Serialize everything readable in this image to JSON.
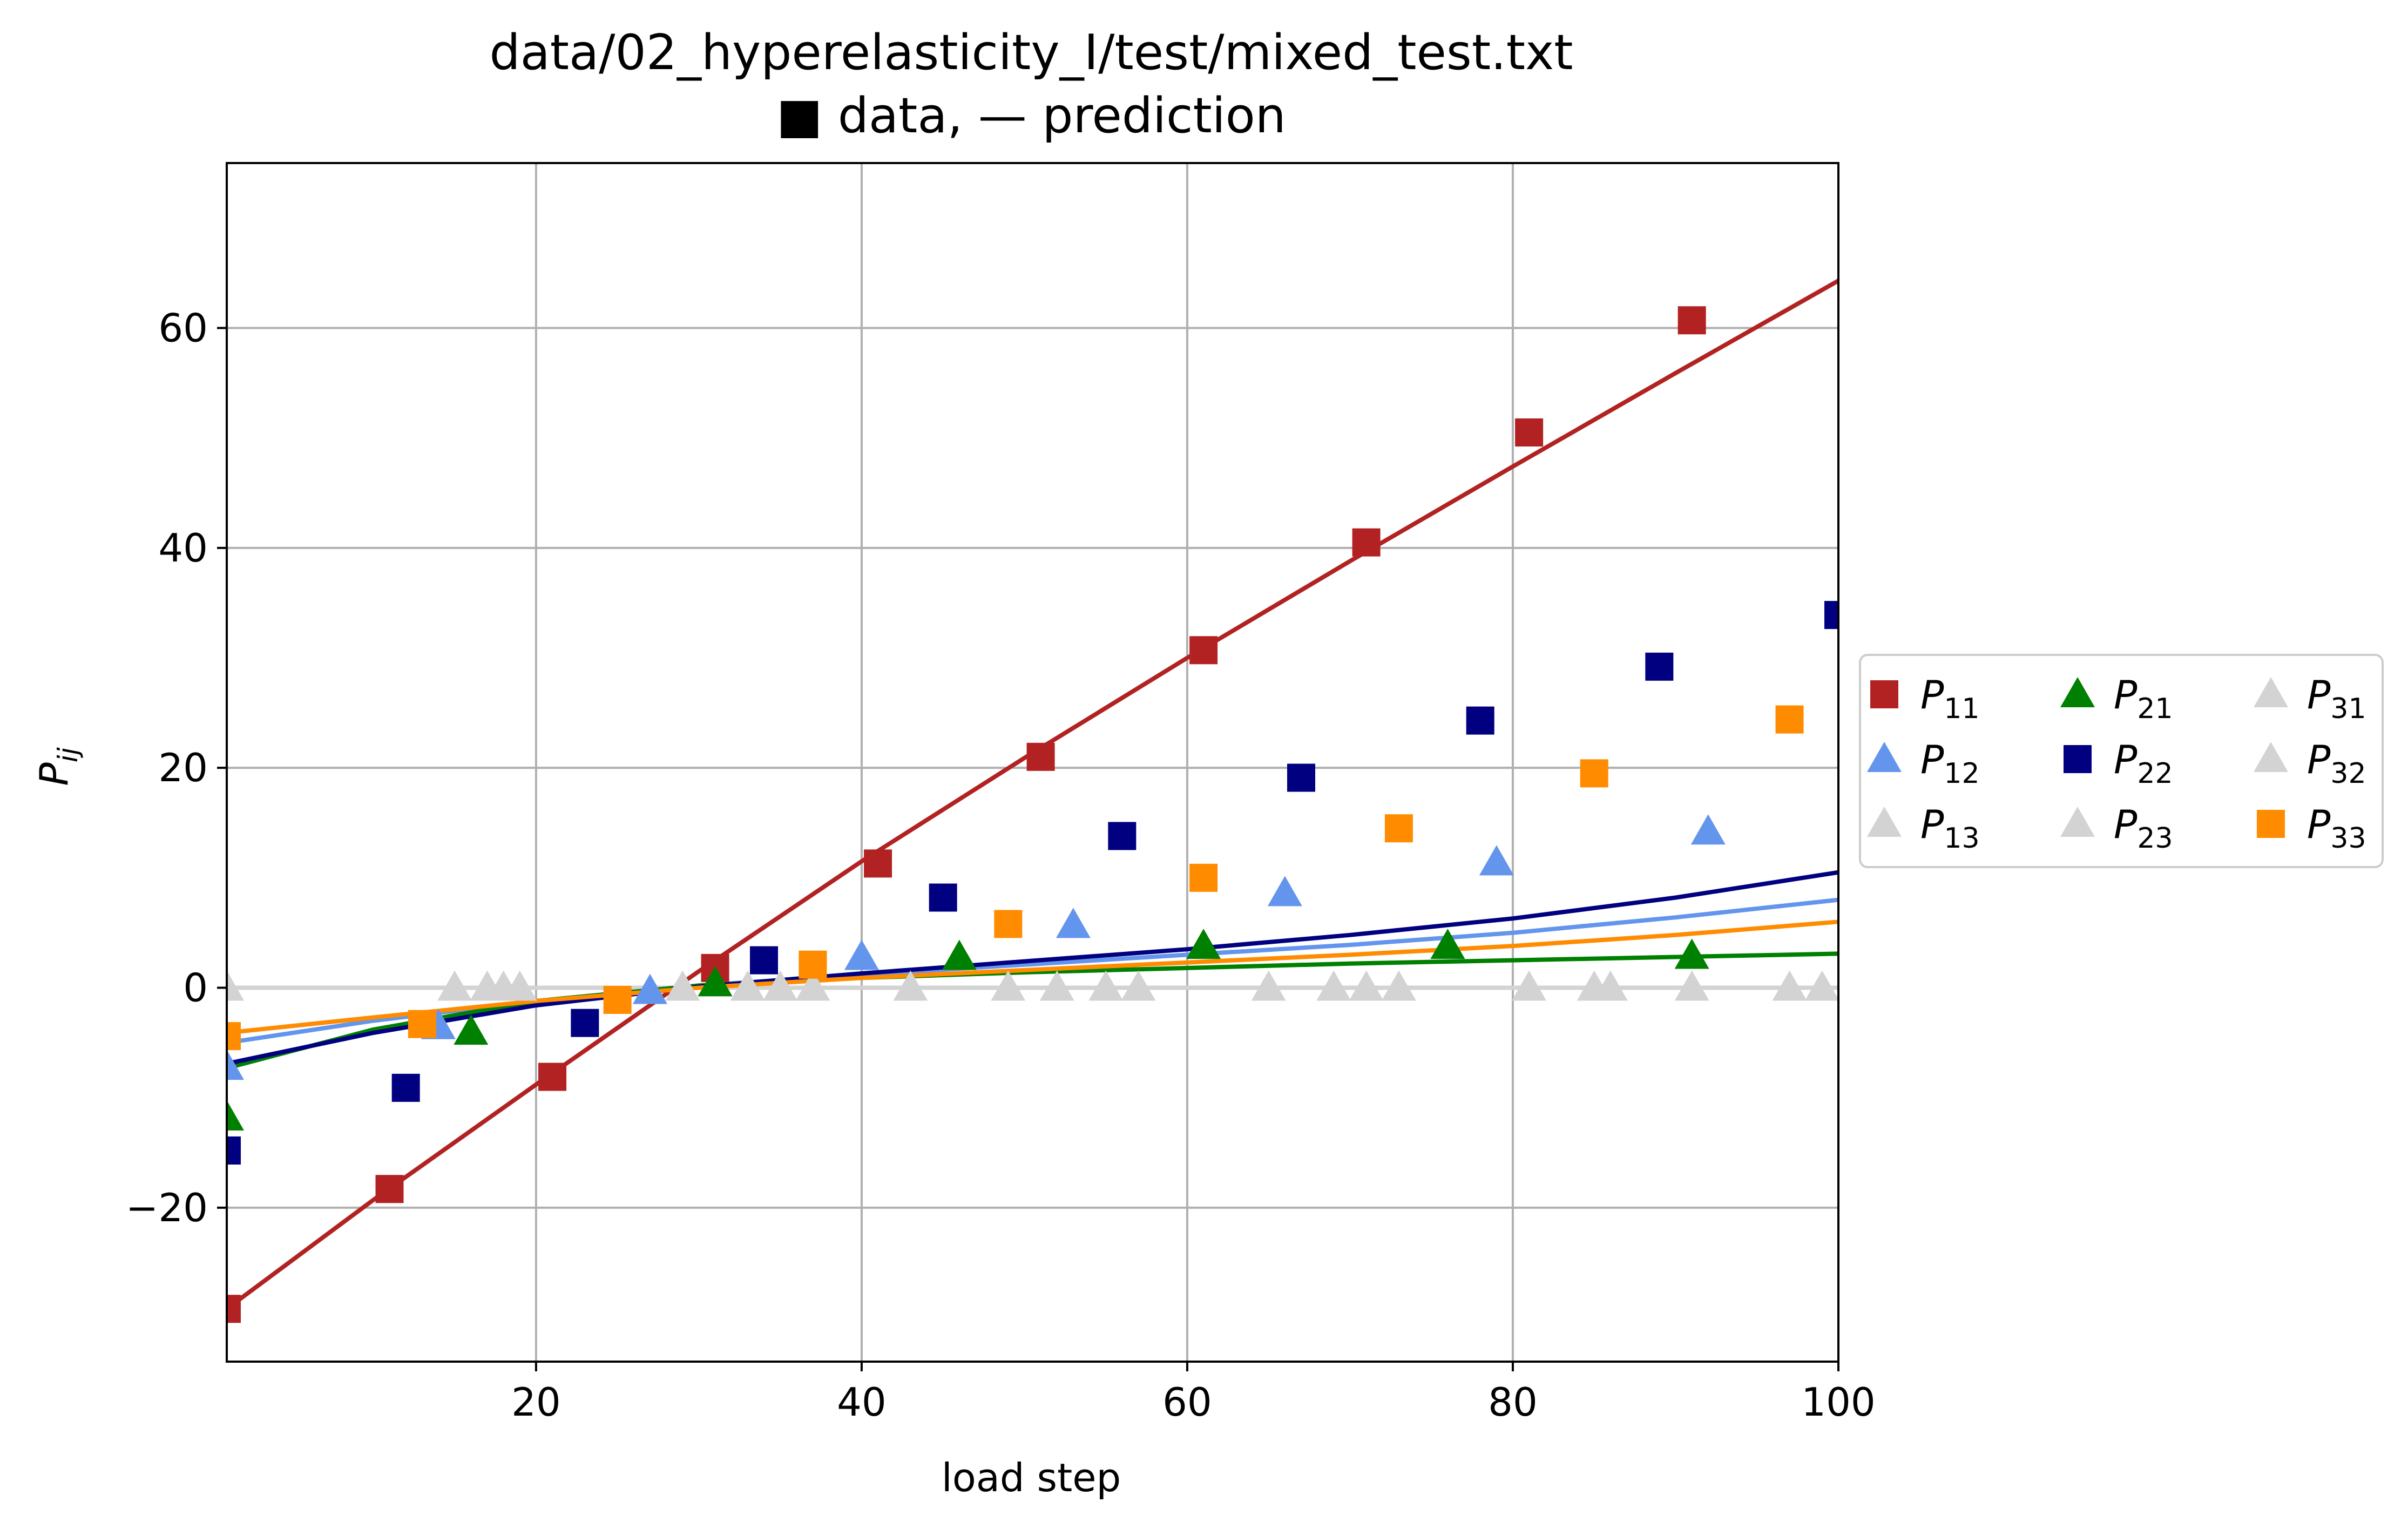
{
  "chart_data": {
    "type": "scatter",
    "title": "data/02_hyperelasticity_I/test/mixed_test.txt",
    "subtitle": "■ data, — prediction",
    "xlabel": "load step",
    "ylabel": "P_ij",
    "xlim": [
      1,
      100
    ],
    "ylim": [
      -34,
      75
    ],
    "xticks": [
      20,
      40,
      60,
      80,
      100
    ],
    "yticks": [
      -20,
      0,
      20,
      40,
      60
    ],
    "ytick_labels": [
      "−20",
      "0",
      "20",
      "40",
      "60"
    ],
    "grid": true,
    "legend_position": "outside-right",
    "series": [
      {
        "name": "P",
        "sub": "11",
        "color": "#b22222",
        "marker": "square",
        "x": [
          1,
          11,
          21,
          31,
          41,
          51,
          61,
          71,
          81,
          91
        ],
        "y": [
          -29.2,
          -18.3,
          -8.1,
          1.8,
          11.3,
          21.0,
          30.7,
          40.5,
          50.5,
          60.7
        ]
      },
      {
        "name": "P",
        "sub": "12",
        "color": "#6495ed",
        "marker": "triangle",
        "x": [
          1,
          14,
          27,
          40,
          53,
          66,
          79,
          92
        ],
        "y": [
          -7.2,
          -3.5,
          -0.3,
          2.8,
          5.7,
          8.6,
          11.4,
          14.2
        ]
      },
      {
        "name": "P",
        "sub": "13",
        "color": "#d3d3d3",
        "marker": "triangle",
        "x": [
          1,
          17,
          33,
          49,
          65,
          81,
          97
        ],
        "y": [
          0,
          0,
          0,
          0,
          0,
          0,
          0
        ]
      },
      {
        "name": "P",
        "sub": "21",
        "color": "#008000",
        "marker": "triangle",
        "x": [
          1,
          16,
          31,
          46,
          61,
          76,
          91
        ],
        "y": [
          -11.8,
          -4.0,
          0.4,
          2.8,
          3.8,
          3.8,
          2.9
        ]
      },
      {
        "name": "P",
        "sub": "22",
        "color": "#000080",
        "marker": "square",
        "x": [
          1,
          12,
          23,
          34,
          45,
          56,
          67,
          78,
          89,
          100
        ],
        "y": [
          -14.8,
          -9.1,
          -3.2,
          2.5,
          8.2,
          13.8,
          19.1,
          24.3,
          29.2,
          33.9
        ]
      },
      {
        "name": "P",
        "sub": "23",
        "color": "#d3d3d3",
        "marker": "triangle",
        "x": [
          1,
          19,
          37,
          55,
          73,
          91
        ],
        "y": [
          0,
          0,
          0,
          0,
          0,
          0
        ]
      },
      {
        "name": "P",
        "sub": "31",
        "color": "#d3d3d3",
        "marker": "triangle",
        "x": [
          1,
          15,
          29,
          43,
          57,
          71,
          85,
          99
        ],
        "y": [
          0,
          0,
          0,
          0,
          0,
          0,
          0,
          0
        ]
      },
      {
        "name": "P",
        "sub": "32",
        "color": "#d3d3d3",
        "marker": "triangle",
        "x": [
          1,
          18,
          35,
          52,
          69,
          86
        ],
        "y": [
          0,
          0,
          0,
          0,
          0,
          0
        ]
      },
      {
        "name": "P",
        "sub": "33",
        "color": "#ff8c00",
        "marker": "square",
        "x": [
          1,
          13,
          25,
          37,
          49,
          61,
          73,
          85,
          97
        ],
        "y": [
          -4.4,
          -3.3,
          -1.1,
          2.1,
          5.8,
          10.0,
          14.5,
          19.5,
          24.4
        ]
      }
    ],
    "prediction_lines": [
      {
        "component": "P11",
        "color": "#b22222",
        "x": [
          1,
          10,
          20,
          30,
          40,
          50,
          60,
          70,
          80,
          90,
          100
        ],
        "y": [
          -29.2,
          -19.3,
          -8.8,
          1.5,
          11.5,
          20.9,
          30.0,
          38.8,
          47.4,
          55.9,
          64.3
        ]
      },
      {
        "component": "P12",
        "color": "#6495ed",
        "x": [
          1,
          10,
          20,
          30,
          40,
          50,
          60,
          70,
          80,
          90,
          100
        ],
        "y": [
          -5.0,
          -3.0,
          -1.2,
          0.2,
          1.2,
          2.1,
          3.0,
          3.9,
          5.0,
          6.4,
          8.0
        ]
      },
      {
        "component": "P21",
        "color": "#008000",
        "x": [
          1,
          10,
          20,
          30,
          40,
          50,
          60,
          70,
          80,
          90,
          100
        ],
        "y": [
          -7.3,
          -3.8,
          -1.2,
          0.2,
          0.9,
          1.4,
          1.8,
          2.2,
          2.5,
          2.8,
          3.1
        ]
      },
      {
        "component": "P22",
        "color": "#000080",
        "x": [
          1,
          10,
          20,
          30,
          40,
          50,
          60,
          70,
          80,
          90,
          100
        ],
        "y": [
          -6.9,
          -4.1,
          -1.6,
          0.1,
          1.3,
          2.4,
          3.5,
          4.8,
          6.3,
          8.2,
          10.5
        ]
      },
      {
        "component": "P33",
        "color": "#ff8c00",
        "x": [
          1,
          10,
          20,
          30,
          40,
          50,
          60,
          70,
          80,
          90,
          100
        ],
        "y": [
          -4.1,
          -2.7,
          -1.2,
          0.0,
          0.9,
          1.6,
          2.3,
          3.0,
          3.8,
          4.8,
          6.0
        ]
      },
      {
        "component": "P13",
        "color": "#d3d3d3",
        "x": [
          1,
          100
        ],
        "y": [
          0,
          0
        ]
      },
      {
        "component": "P23",
        "color": "#d3d3d3",
        "x": [
          1,
          100
        ],
        "y": [
          0,
          0
        ]
      },
      {
        "component": "P31",
        "color": "#d3d3d3",
        "x": [
          1,
          100
        ],
        "y": [
          0,
          0
        ]
      },
      {
        "component": "P32",
        "color": "#d3d3d3",
        "x": [
          1,
          100
        ],
        "y": [
          0,
          0
        ]
      }
    ]
  }
}
